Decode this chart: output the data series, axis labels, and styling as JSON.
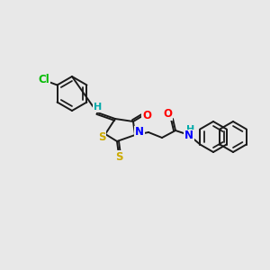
{
  "bg_color": "#e8e8e8",
  "bond_color": "#1a1a1a",
  "atom_colors": {
    "O": "#ff0000",
    "N": "#0000ff",
    "S": "#ccaa00",
    "Cl": "#00bb00",
    "H": "#00aaaa",
    "C": "#1a1a1a"
  },
  "lw": 1.4,
  "fontsize": 8.5
}
